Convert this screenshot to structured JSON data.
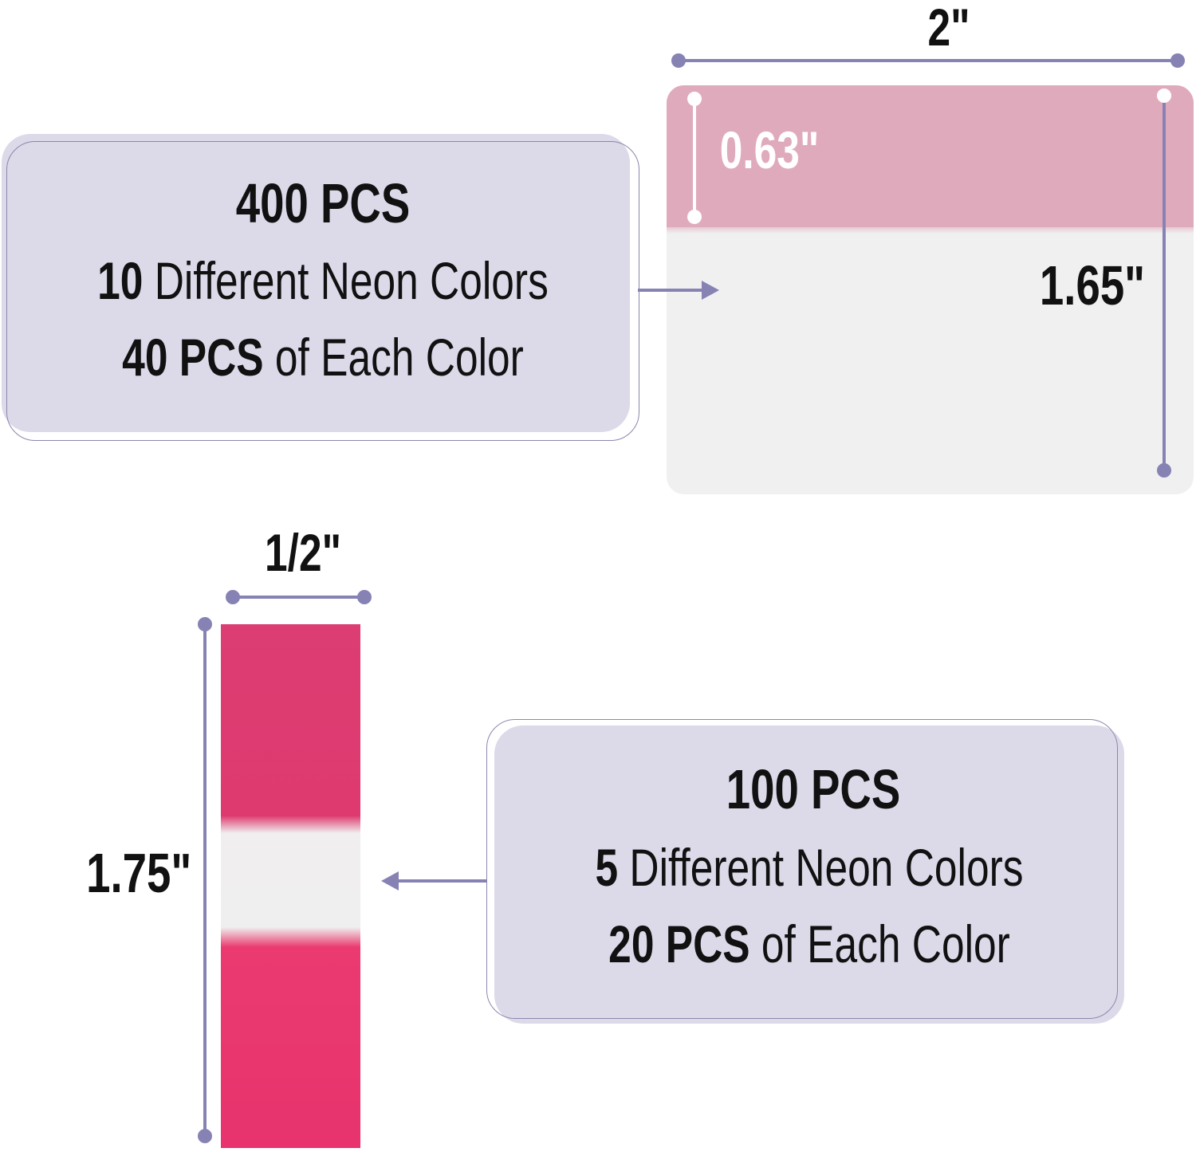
{
  "large_flag": {
    "width_label": "2\"",
    "tab_height_label": "0.63\"",
    "height_label": "1.65\"",
    "info": {
      "quantity": "400 PCS",
      "colors_count": "10",
      "colors_text": "Different Neon Colors",
      "per_color": "40 PCS",
      "per_color_text": "of Each Color"
    }
  },
  "small_flag": {
    "width_label": "1/2\"",
    "height_label": "1.75\"",
    "info": {
      "quantity": "100 PCS",
      "colors_count": "5",
      "colors_text": "Different Neon Colors",
      "per_color": "20 PCS",
      "per_color_text": "of Each Color"
    }
  },
  "colors": {
    "accent": "#8682b4",
    "box_bg": "#dcd9e9",
    "large_flag_tab": "#e0aabd",
    "small_flag_pink": "#e2366f"
  }
}
